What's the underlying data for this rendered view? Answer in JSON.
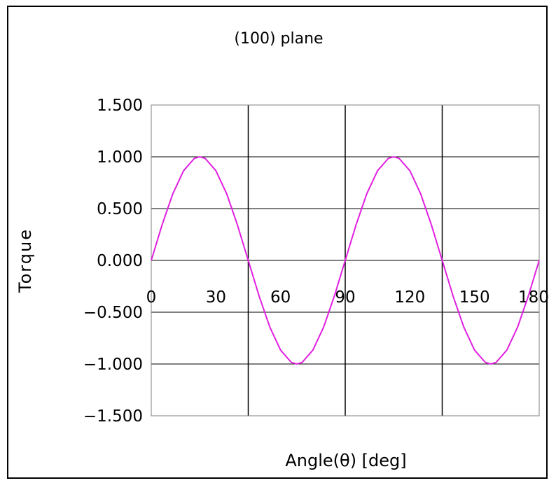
{
  "chart_data": {
    "type": "line",
    "title": "(100) plane",
    "xlabel": "Angle(θ) [deg]",
    "ylabel": "Torque",
    "xlim": [
      0,
      180
    ],
    "ylim": [
      -1.5,
      1.5
    ],
    "x_ticks": [
      0,
      30,
      60,
      90,
      120,
      150,
      180
    ],
    "x_tick_labels": [
      "0",
      "30",
      "60",
      "90",
      "120",
      "150",
      "180"
    ],
    "y_ticks": [
      1.5,
      1.0,
      0.5,
      0.0,
      -0.5,
      -1.0,
      -1.5
    ],
    "y_tick_labels": [
      "1.500",
      "1.000",
      "0.500",
      "0.000",
      "−0.500",
      "−1.000",
      "−1.500"
    ],
    "vertical_gridlines_at": [
      45,
      90,
      135
    ],
    "grid": true,
    "legend": "none",
    "series": [
      {
        "color": "#e020e0",
        "x": [
          0,
          5,
          10,
          15,
          20,
          22.5,
          25,
          30,
          35,
          40,
          45,
          50,
          55,
          60,
          65,
          67.5,
          70,
          75,
          80,
          85,
          90,
          95,
          100,
          105,
          110,
          112.5,
          115,
          120,
          125,
          130,
          135,
          140,
          145,
          150,
          155,
          157.5,
          160,
          165,
          170,
          175,
          180
        ],
        "y": [
          0.0,
          0.342,
          0.643,
          0.866,
          0.985,
          1.0,
          0.985,
          0.866,
          0.643,
          0.342,
          0.0,
          -0.342,
          -0.643,
          -0.866,
          -0.985,
          -1.0,
          -0.985,
          -0.866,
          -0.643,
          -0.342,
          0.0,
          0.342,
          0.643,
          0.866,
          0.985,
          1.0,
          0.985,
          0.866,
          0.643,
          0.342,
          0.0,
          -0.342,
          -0.643,
          -0.866,
          -0.985,
          -1.0,
          -0.985,
          -0.866,
          -0.643,
          -0.342,
          0.0
        ]
      }
    ]
  }
}
